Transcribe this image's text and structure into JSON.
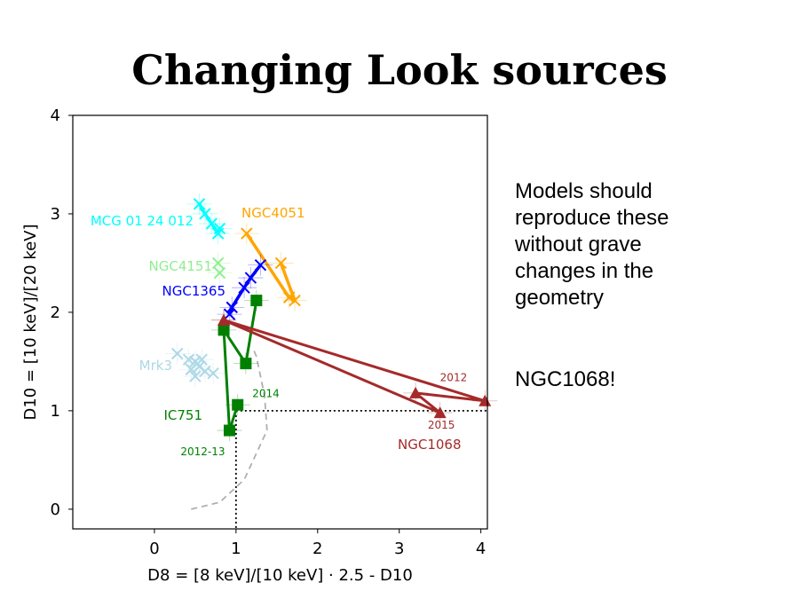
{
  "slide": {
    "title": "Changing Look sources",
    "text_block_1": "Models should\nreproduce these\nwithout grave\nchanges in the\ngeometry",
    "text_block_2": "NGC1068!"
  },
  "chart_data": {
    "type": "scatter",
    "title": "",
    "xlabel": "D8 = [8 keV]/[10 keV] · 2.5 - D10",
    "ylabel": "D10 = [10 keV]/[20 keV]",
    "xlim": [
      -1.0,
      4.08
    ],
    "ylim": [
      -0.2,
      4.0
    ],
    "x_ticks": [
      0,
      1,
      2,
      3,
      4
    ],
    "y_ticks": [
      0,
      1,
      2,
      3,
      4
    ],
    "grid": false,
    "reference_lines": {
      "x": 1,
      "y": 1,
      "style": "dotted",
      "color": "#000000"
    },
    "boundary_curve": {
      "style": "dashed",
      "color": "#b0b0b0",
      "points": [
        [
          0.45,
          0.0
        ],
        [
          0.8,
          0.07
        ],
        [
          1.1,
          0.3
        ],
        [
          1.38,
          0.8
        ],
        [
          1.35,
          1.15
        ],
        [
          1.25,
          1.55
        ],
        [
          1.2,
          1.65
        ]
      ]
    },
    "series": [
      {
        "name": "MCG 01 24 012",
        "color": "#00ffff",
        "marker": "x",
        "connected": true,
        "points": [
          [
            0.55,
            3.1
          ],
          [
            0.62,
            3.0
          ],
          [
            0.7,
            2.9
          ],
          [
            0.78,
            2.8
          ],
          [
            0.8,
            2.85
          ]
        ]
      },
      {
        "name": "NGC4051",
        "color": "#ffa500",
        "marker": "x",
        "connected": true,
        "points": [
          [
            1.13,
            2.8
          ],
          [
            1.65,
            2.15
          ],
          [
            1.72,
            2.12
          ],
          [
            1.55,
            2.5
          ]
        ]
      },
      {
        "name": "NGC4151",
        "color": "#90ee90",
        "marker": "x",
        "connected": false,
        "points": [
          [
            0.78,
            2.5
          ],
          [
            0.8,
            2.4
          ]
        ]
      },
      {
        "name": "NGC1365",
        "color": "#0000ff",
        "marker": "x",
        "connected": true,
        "points": [
          [
            0.92,
            1.98
          ],
          [
            0.95,
            2.05
          ],
          [
            1.1,
            2.25
          ],
          [
            1.18,
            2.35
          ],
          [
            1.3,
            2.48
          ]
        ]
      },
      {
        "name": "Mrk3",
        "color": "#add8e6",
        "marker": "x",
        "connected": false,
        "points": [
          [
            0.28,
            1.58
          ],
          [
            0.42,
            1.52
          ],
          [
            0.5,
            1.5
          ],
          [
            0.58,
            1.52
          ],
          [
            0.55,
            1.45
          ],
          [
            0.62,
            1.4
          ],
          [
            0.72,
            1.38
          ],
          [
            0.5,
            1.35
          ],
          [
            0.45,
            1.42
          ]
        ]
      },
      {
        "name": "IC751",
        "color": "#008000",
        "marker": "square",
        "connected": true,
        "points": [
          [
            1.25,
            2.12
          ],
          [
            1.12,
            1.48
          ],
          [
            0.85,
            1.82
          ],
          [
            0.92,
            0.8
          ],
          [
            1.02,
            1.06
          ]
        ]
      },
      {
        "name": "NGC1068",
        "color": "#a52a2a",
        "marker": "triangle",
        "connected": true,
        "points": [
          [
            0.85,
            1.92
          ],
          [
            4.05,
            1.1
          ],
          [
            3.2,
            1.18
          ],
          [
            3.5,
            0.98
          ],
          [
            0.85,
            1.92
          ]
        ]
      }
    ],
    "annotations": [
      {
        "text": "2014",
        "color": "#008000",
        "x": 1.2,
        "y": 1.14
      },
      {
        "text": "2012-13",
        "color": "#008000",
        "x": 0.32,
        "y": 0.55
      },
      {
        "text": "2012",
        "color": "#a52a2a",
        "x": 3.5,
        "y": 1.3
      },
      {
        "text": "2015",
        "color": "#a52a2a",
        "x": 3.35,
        "y": 0.82
      }
    ]
  }
}
